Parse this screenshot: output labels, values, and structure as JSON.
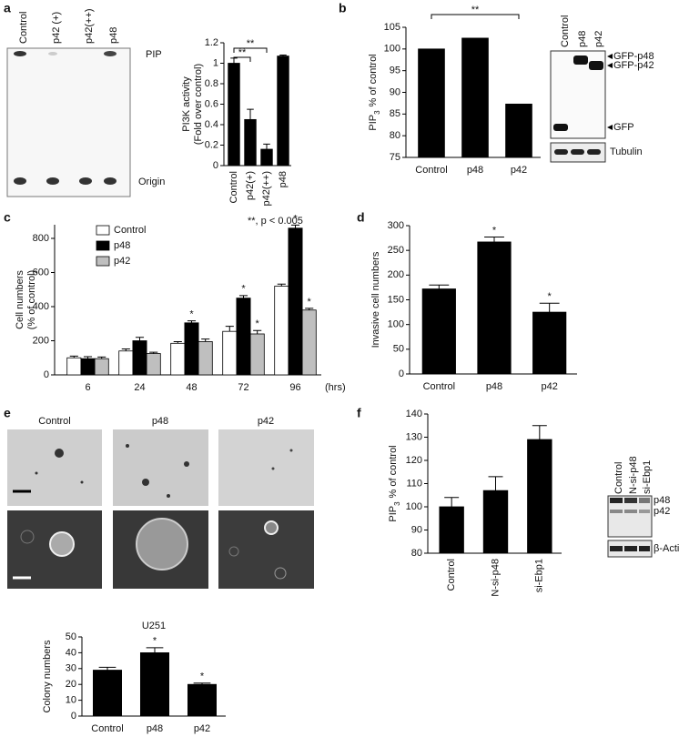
{
  "panels": [
    "a",
    "b",
    "c",
    "d",
    "e",
    "f"
  ],
  "tlc": {
    "lanes": [
      "Control",
      "p42 (+)",
      "p42(++)",
      "p48"
    ],
    "bands": [
      "PIP",
      "Origin"
    ]
  },
  "blot_b": {
    "lanes": [
      "Control",
      "p48",
      "p42"
    ],
    "bands": [
      "GFP-p48",
      "GFP-p42",
      "GFP"
    ],
    "loading": "Tubulin"
  },
  "images_e": {
    "conditions": [
      "Control",
      "p48",
      "p42"
    ]
  },
  "blot_f": {
    "lanes": [
      "Control",
      "N-si-p48",
      "si-Ebp1"
    ],
    "bands": [
      "p48",
      "p42"
    ],
    "loading": "β-Actin"
  },
  "chart_data": [
    {
      "type": "bar",
      "ylabel": [
        "PI3K activity",
        "(Fold over control)"
      ],
      "categories": [
        "Control",
        "p42(+)",
        "p42(++)",
        "p48"
      ],
      "values": [
        1,
        0.45,
        0.16,
        1.07
      ],
      "errors": [
        0.05,
        0.1,
        0.05,
        0.01
      ],
      "color": "#000000",
      "ylim": [
        0,
        1.2
      ],
      "yticks": [
        0,
        0.2,
        0.4,
        0.6,
        0.8,
        1,
        1.2
      ],
      "xlabel_rotate": true,
      "brackets": [
        {
          "from": 0,
          "to": 1,
          "label": "**"
        },
        {
          "from": 0,
          "to": 2,
          "label": "**"
        }
      ],
      "note": "**, p < 0.005"
    },
    {
      "type": "bar",
      "ylabel": [
        "PIP",
        "3",
        "% of control"
      ],
      "ylabel_style": "subscript",
      "categories": [
        "Control",
        "p48",
        "p42"
      ],
      "values": [
        100,
        102.5,
        87.3
      ],
      "color": "#000000",
      "ylim": [
        75,
        105
      ],
      "yticks": [
        75,
        80,
        85,
        90,
        95,
        100,
        105
      ],
      "brackets": [
        {
          "from": 0,
          "to": 2,
          "label": "**"
        }
      ]
    },
    {
      "type": "bar",
      "ylabel": [
        "Cell numbers",
        "(% of control)"
      ],
      "xlabel": "(hrs)",
      "categories": [
        "6",
        "24",
        "48",
        "72",
        "96"
      ],
      "series": [
        {
          "name": "Control",
          "color": "#ffffff",
          "values": [
            100,
            140,
            185,
            255,
            520
          ],
          "errors": [
            10,
            12,
            10,
            30,
            12
          ],
          "significance": [
            null,
            null,
            null,
            null,
            null
          ]
        },
        {
          "name": "p48",
          "color": "#000000",
          "values": [
            95,
            200,
            305,
            450,
            860
          ],
          "errors": [
            12,
            20,
            12,
            15,
            18
          ],
          "significance": [
            null,
            null,
            "*",
            "*",
            "*"
          ]
        },
        {
          "name": "p42",
          "color": "#bfbfbf",
          "values": [
            95,
            125,
            195,
            240,
            380
          ],
          "errors": [
            10,
            8,
            15,
            20,
            10
          ],
          "significance": [
            null,
            null,
            null,
            "*",
            "*"
          ]
        }
      ],
      "ylim": [
        0,
        880
      ],
      "yticks": [
        0,
        200,
        400,
        600,
        800
      ],
      "legend": "top-left"
    },
    {
      "type": "bar",
      "ylabel": [
        "Invasive cell numbers"
      ],
      "categories": [
        "Control",
        "p48",
        "p42"
      ],
      "values": [
        172,
        267,
        125
      ],
      "errors": [
        8,
        10,
        18
      ],
      "significance": [
        null,
        "*",
        "*"
      ],
      "color": "#000000",
      "ylim": [
        0,
        300
      ],
      "yticks": [
        0,
        50,
        100,
        150,
        200,
        250,
        300
      ]
    },
    {
      "type": "bar",
      "title": "U251",
      "ylabel": [
        "Colony numbers"
      ],
      "categories": [
        "Control",
        "p48",
        "p42"
      ],
      "values": [
        29,
        40,
        20
      ],
      "errors": [
        1.8,
        3.2,
        0.8
      ],
      "significance": [
        null,
        "*",
        "*"
      ],
      "color": "#000000",
      "ylim": [
        0,
        50
      ],
      "yticks": [
        0,
        10,
        20,
        30,
        40,
        50
      ]
    },
    {
      "type": "bar",
      "ylabel": [
        "PIP",
        "3",
        "% of control"
      ],
      "ylabel_style": "subscript",
      "categories": [
        "Control",
        "N-si-p48",
        "si-Ebp1"
      ],
      "values": [
        100,
        107,
        129
      ],
      "errors": [
        4,
        6,
        6
      ],
      "color": "#000000",
      "ylim": [
        80,
        140
      ],
      "yticks": [
        80,
        90,
        100,
        110,
        120,
        130,
        140
      ],
      "xlabel_rotate": true
    }
  ]
}
